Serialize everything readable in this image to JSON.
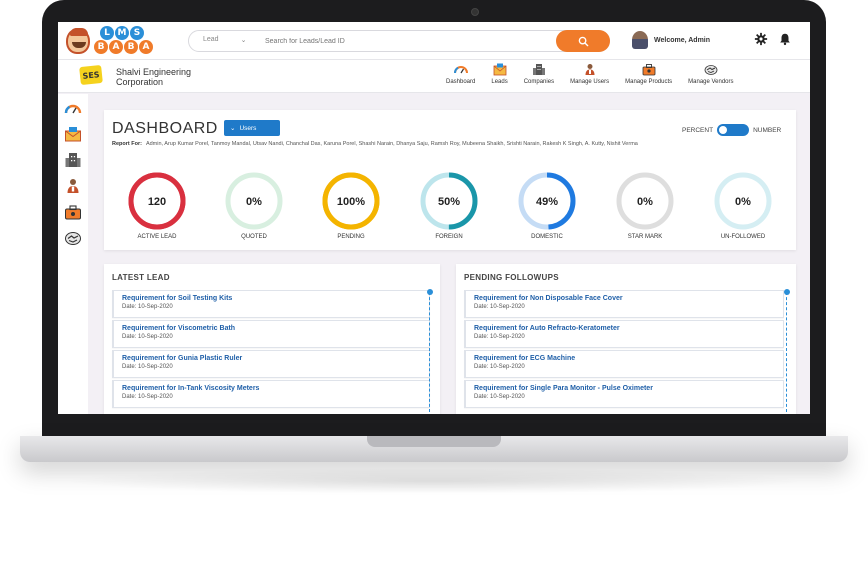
{
  "brand": {
    "logo_row1": [
      "L",
      "M",
      "S"
    ],
    "logo_row2": [
      "B",
      "A",
      "B",
      "A"
    ]
  },
  "search": {
    "type_value": "Lead",
    "placeholder": "Search for Leads/Lead ID"
  },
  "header": {
    "welcome": "Welcome, Admin"
  },
  "company": {
    "name": "Shalvi Engineering Corporation",
    "logo_text": "SES"
  },
  "nav": [
    {
      "label": "Dashboard",
      "icon": "dashboard-gauge-icon"
    },
    {
      "label": "Leads",
      "icon": "leads-envelope-icon"
    },
    {
      "label": "Companies",
      "icon": "companies-building-icon"
    },
    {
      "label": "Manage Users",
      "icon": "users-icon"
    },
    {
      "label": "Manage Products",
      "icon": "products-box-icon"
    },
    {
      "label": "Manage Vendors",
      "icon": "vendors-handshake-icon"
    }
  ],
  "dashboard": {
    "title": "DASHBOARD",
    "users_button": "Users",
    "toggle_left": "PERCENT",
    "toggle_right": "NUMBER",
    "report_label": "Report For:",
    "report_users": "Admin, Arup Kumar Porel, Tanmoy Mandal, Utsav Nandi, Chanchal Das, Karuna Porel, Shashi Narain, Dhanya Saju, Ramsh Roy, Mubeena Shaikh, Srishti Narain, Rakesh K Singh, A. Kutty, Nishit Verma",
    "stats": [
      {
        "value": "120",
        "label": "ACTIVE LEAD",
        "color": "#d9303f",
        "track": "#d9303f",
        "fraction": 1.0
      },
      {
        "value": "0%",
        "label": "QUOTED",
        "color": "#9fd9b2",
        "track": "#d8efe0",
        "fraction": 0.0
      },
      {
        "value": "100%",
        "label": "PENDING",
        "color": "#f4b400",
        "track": "#f4b400",
        "fraction": 1.0
      },
      {
        "value": "50%",
        "label": "FOREIGN",
        "color": "#1a96a9",
        "track": "#bde5ec",
        "fraction": 0.5
      },
      {
        "value": "49%",
        "label": "DOMESTIC",
        "color": "#1f7ae0",
        "track": "#c5dcf5",
        "fraction": 0.49
      },
      {
        "value": "0%",
        "label": "STAR MARK",
        "color": "#cfcfcf",
        "track": "#dedede",
        "fraction": 0.0
      },
      {
        "value": "0%",
        "label": "UN-FOLLOWED",
        "color": "#bfe2ea",
        "track": "#d5eef3",
        "fraction": 0.0
      }
    ]
  },
  "latest_lead": {
    "title": "LATEST LEAD",
    "items": [
      {
        "title": "Requirement for Soil Testing Kits",
        "date": "Date: 10-Sep-2020"
      },
      {
        "title": "Requirement for Viscometric Bath",
        "date": "Date: 10-Sep-2020"
      },
      {
        "title": "Requirement for Gunia Plastic Ruler",
        "date": "Date: 10-Sep-2020"
      },
      {
        "title": "Requirement for In-Tank Viscosity Meters",
        "date": "Date: 10-Sep-2020"
      }
    ]
  },
  "pending_followups": {
    "title": "PENDING FOLLOWUPS",
    "items": [
      {
        "title": "Requirement for Non Disposable Face Cover",
        "date": "Date: 10-Sep-2020"
      },
      {
        "title": "Requirement for Auto Refracto-Keratometer",
        "date": "Date: 10-Sep-2020"
      },
      {
        "title": "Requirement for ECG Machine",
        "date": "Date: 10-Sep-2020"
      },
      {
        "title": "Requirement for Single Para Monitor - Pulse Oximeter",
        "date": "Date: 10-Sep-2020"
      }
    ]
  }
}
